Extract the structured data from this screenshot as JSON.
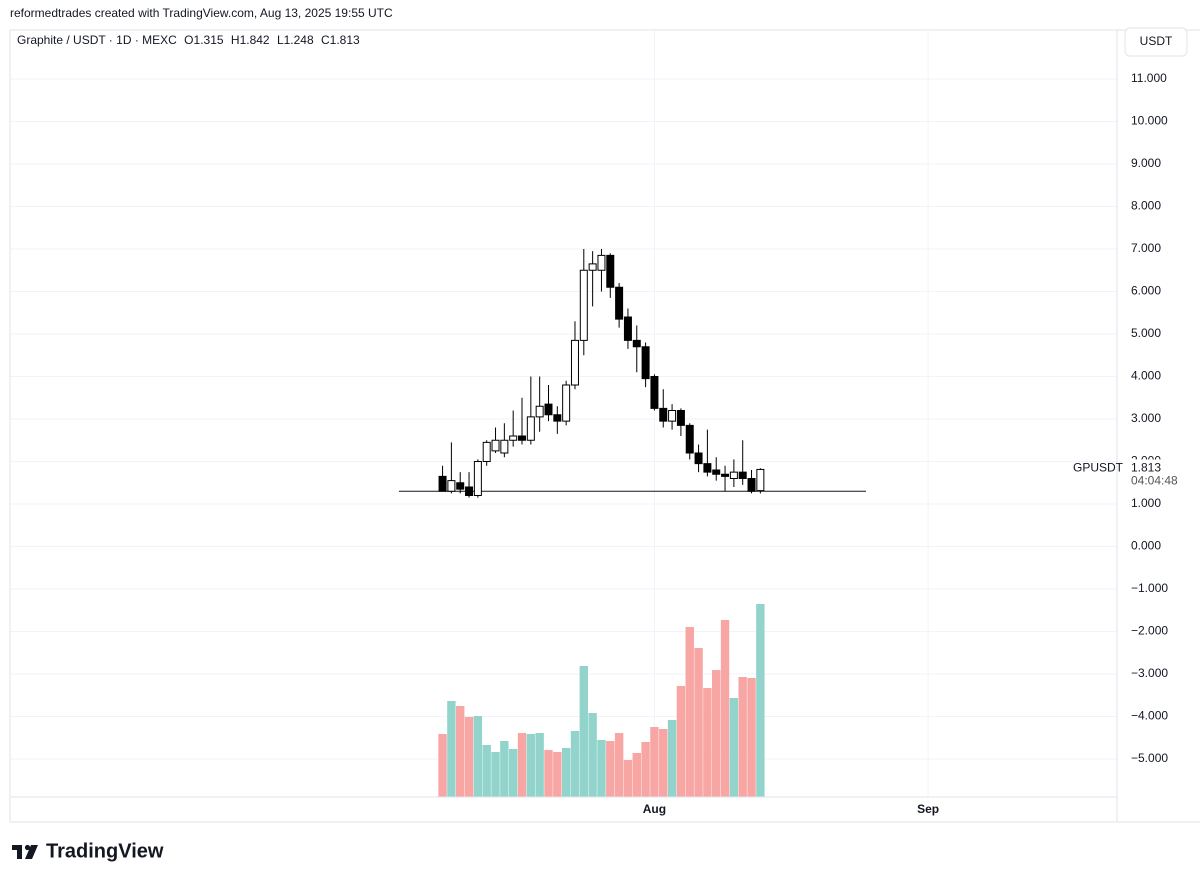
{
  "header": "reformedtrades created with TradingView.com, Aug 13, 2025 19:55 UTC",
  "logo": "TradingView",
  "currency_button": "USDT",
  "chart_data": {
    "type": "candlestick",
    "symbol": "Graphite / USDT · 1D · MEXC",
    "ohlc_labels": [
      "O",
      "H",
      "L",
      "C"
    ],
    "price_tag": {
      "ticker": "GPUSDT",
      "countdown": "04:04:48"
    },
    "support_line": 1.3,
    "x": [
      0,
      1,
      2,
      3,
      4,
      5,
      6,
      7,
      8,
      9,
      10,
      11,
      12,
      13,
      14,
      15,
      16,
      17,
      18,
      19,
      20,
      21,
      22,
      23,
      24,
      25,
      26,
      27,
      28,
      29,
      30,
      31,
      32,
      33,
      34,
      35,
      36
    ],
    "open": [
      1.65,
      1.3,
      1.5,
      1.4,
      1.2,
      2.0,
      2.25,
      2.2,
      2.5,
      2.6,
      2.5,
      3.05,
      3.35,
      3.1,
      2.95,
      3.8,
      4.85,
      6.5,
      6.5,
      6.85,
      6.1,
      5.4,
      4.85,
      4.7,
      4.0,
      3.25,
      2.95,
      3.2,
      2.85,
      2.2,
      1.95,
      1.8,
      1.7,
      1.6,
      1.75,
      1.6,
      1.315
    ],
    "high": [
      1.9,
      2.45,
      1.75,
      1.75,
      2.05,
      2.5,
      2.8,
      2.9,
      3.2,
      3.5,
      4.0,
      4.0,
      3.8,
      3.3,
      3.9,
      5.3,
      7.0,
      6.95,
      7.0,
      6.9,
      6.2,
      5.6,
      5.2,
      4.8,
      4.05,
      3.7,
      3.35,
      3.25,
      2.9,
      2.4,
      2.75,
      2.1,
      1.9,
      2.05,
      2.5,
      1.8,
      1.842
    ],
    "low": [
      1.3,
      1.25,
      1.25,
      1.15,
      1.15,
      1.9,
      2.2,
      2.1,
      2.35,
      2.4,
      2.4,
      2.7,
      2.95,
      2.65,
      2.85,
      3.7,
      4.5,
      5.65,
      6.0,
      5.85,
      5.15,
      4.65,
      4.1,
      3.75,
      3.2,
      2.8,
      2.75,
      2.6,
      2.05,
      1.75,
      1.65,
      1.55,
      1.3,
      1.4,
      1.45,
      1.25,
      1.248
    ],
    "close": [
      1.3,
      1.55,
      1.35,
      1.2,
      2.0,
      2.45,
      2.5,
      2.5,
      2.6,
      2.5,
      3.05,
      3.3,
      3.1,
      2.95,
      3.8,
      4.85,
      6.5,
      6.65,
      6.85,
      6.1,
      5.35,
      4.85,
      4.7,
      3.95,
      3.25,
      2.95,
      3.2,
      2.85,
      2.2,
      1.95,
      1.75,
      1.7,
      1.65,
      1.75,
      1.6,
      1.3,
      1.813
    ],
    "volume": [
      63,
      96,
      91,
      80,
      81,
      52,
      45,
      56,
      48,
      64,
      63,
      64,
      47,
      45,
      49,
      66,
      131,
      84,
      57,
      56,
      64,
      37,
      44,
      55,
      70,
      68,
      77,
      111,
      170,
      149,
      109,
      127,
      177,
      99,
      120,
      119,
      193
    ],
    "xlim": [
      -49,
      76.4
    ],
    "xticks": [
      {
        "value": 24,
        "label": "Aug"
      },
      {
        "value": 55,
        "label": "Sep"
      }
    ],
    "ylim": [
      -5.894,
      12.153
    ],
    "yticks": [
      {
        "value": 11,
        "label": "11.000"
      },
      {
        "value": 10,
        "label": "10.000"
      },
      {
        "value": 9,
        "label": "9.000"
      },
      {
        "value": 8,
        "label": "8.000"
      },
      {
        "value": 7,
        "label": "7.000"
      },
      {
        "value": 6,
        "label": "6.000"
      },
      {
        "value": 5,
        "label": "5.000"
      },
      {
        "value": 4,
        "label": "4.000"
      },
      {
        "value": 3,
        "label": "3.000"
      },
      {
        "value": 2,
        "label": "2.000"
      },
      {
        "value": 1,
        "label": "1.000"
      },
      {
        "value": 0,
        "label": "0.000"
      },
      {
        "value": -1,
        "label": "−1.000"
      },
      {
        "value": -2,
        "label": "−2.000"
      },
      {
        "value": -3,
        "label": "−3.000"
      },
      {
        "value": -4,
        "label": "−4.000"
      },
      {
        "value": -5,
        "label": "−5.000"
      }
    ],
    "grid": true,
    "up_color": "#ffffff",
    "down_color": "#000000",
    "volume_up_color": "#92d4cc",
    "volume_down_color": "#f7a6a3"
  }
}
